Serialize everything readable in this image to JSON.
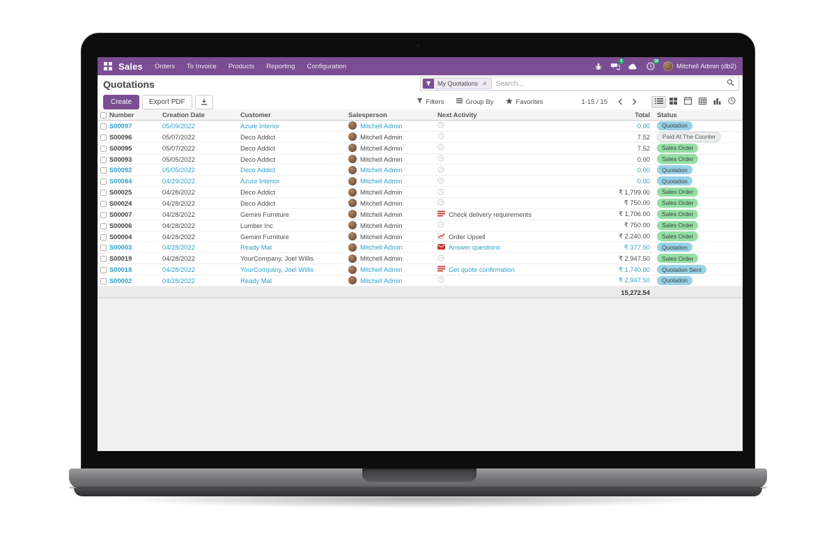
{
  "colors": {
    "purple": "#7B4D92",
    "link_blue": "#31A0C9",
    "activity_red": "#C7362F",
    "badge_info_bg": "#97D2E6",
    "badge_success_bg": "#93DFA4",
    "badge_muted_bg": "#EBEDEF",
    "navbar_badge": "#21A567"
  },
  "navbar": {
    "brand": "Sales",
    "menus": [
      "Orders",
      "To Invoice",
      "Products",
      "Reporting",
      "Configuration"
    ],
    "right_icons": [
      {
        "icon": "bug",
        "badge": ""
      },
      {
        "icon": "messages",
        "badge": "5"
      },
      {
        "icon": "cloud",
        "badge": ""
      },
      {
        "icon": "activities",
        "badge": "18"
      }
    ],
    "user": "Mitchell Admin (db2)"
  },
  "control_panel": {
    "title": "Quotations",
    "buttons": {
      "create": "Create",
      "export_pdf": "Export PDF"
    },
    "search": {
      "facet": "My Quotations",
      "placeholder": "Search..."
    },
    "filter_menus": [
      {
        "icon": "funnel",
        "label": "Filters"
      },
      {
        "icon": "bars",
        "label": "Group By"
      },
      {
        "icon": "star",
        "label": "Favorites"
      }
    ],
    "pager": {
      "range": "1-15 / 15"
    },
    "view_switcher": [
      "list",
      "kanban",
      "calendar",
      "pivot",
      "graph",
      "activity"
    ]
  },
  "table": {
    "headers": [
      "Number",
      "Creation Date",
      "Customer",
      "Salesperson",
      "Next Activity",
      "Total",
      "Status"
    ],
    "rows": [
      {
        "number": "S00097",
        "date": "05/09/2022",
        "customer": "Azure Interior",
        "salesperson": "Mitchell Admin",
        "activity": {
          "icon": "clock",
          "label": ""
        },
        "total": "0.00",
        "status": "Quotation",
        "variant": "info",
        "blue": true
      },
      {
        "number": "S00096",
        "date": "05/07/2022",
        "customer": "Deco Addict",
        "salesperson": "Mitchell Admin",
        "activity": {
          "icon": "clock",
          "label": ""
        },
        "total": "7.52",
        "status": "Paid At The Counter",
        "variant": "muted",
        "blue": false
      },
      {
        "number": "S00095",
        "date": "05/07/2022",
        "customer": "Deco Addict",
        "salesperson": "Mitchell Admin",
        "activity": {
          "icon": "clock",
          "label": ""
        },
        "total": "7.52",
        "status": "Sales Order",
        "variant": "success",
        "blue": false
      },
      {
        "number": "S00093",
        "date": "05/05/2022",
        "customer": "Deco Addict",
        "salesperson": "Mitchell Admin",
        "activity": {
          "icon": "clock",
          "label": ""
        },
        "total": "0.00",
        "status": "Sales Order",
        "variant": "success",
        "blue": false
      },
      {
        "number": "S00092",
        "date": "05/05/2022",
        "customer": "Deco Addict",
        "salesperson": "Mitchell Admin",
        "activity": {
          "icon": "clock",
          "label": ""
        },
        "total": "0.00",
        "status": "Quotation",
        "variant": "info",
        "blue": true
      },
      {
        "number": "S00084",
        "date": "04/29/2022",
        "customer": "Azure Interior",
        "salesperson": "Mitchell Admin",
        "activity": {
          "icon": "clock",
          "label": ""
        },
        "total": "0.00",
        "status": "Quotation",
        "variant": "info",
        "blue": true
      },
      {
        "number": "S00025",
        "date": "04/28/2022",
        "customer": "Deco Addict",
        "salesperson": "Mitchell Admin",
        "activity": {
          "icon": "clock",
          "label": ""
        },
        "total": "₹ 1,799.00",
        "status": "Sales Order",
        "variant": "success",
        "blue": false
      },
      {
        "number": "S00024",
        "date": "04/28/2022",
        "customer": "Deco Addict",
        "salesperson": "Mitchell Admin",
        "activity": {
          "icon": "clock",
          "label": ""
        },
        "total": "₹ 750.00",
        "status": "Sales Order",
        "variant": "success",
        "blue": false
      },
      {
        "number": "S00007",
        "date": "04/28/2022",
        "customer": "Gemini Furniture",
        "salesperson": "Mitchell Admin",
        "activity": {
          "icon": "tasks",
          "label": "Check delivery requirements"
        },
        "total": "₹ 1,706.00",
        "status": "Sales Order",
        "variant": "success",
        "blue": false
      },
      {
        "number": "S00006",
        "date": "04/28/2022",
        "customer": "Lumber Inc",
        "salesperson": "Mitchell Admin",
        "activity": {
          "icon": "clock",
          "label": ""
        },
        "total": "₹ 750.00",
        "status": "Sales Order",
        "variant": "success",
        "blue": false
      },
      {
        "number": "S00004",
        "date": "04/28/2022",
        "customer": "Gemini Furniture",
        "salesperson": "Mitchell Admin",
        "activity": {
          "icon": "chart",
          "label": "Order Upsell"
        },
        "total": "₹ 2,240.00",
        "status": "Sales Order",
        "variant": "success",
        "blue": false
      },
      {
        "number": "S00003",
        "date": "04/28/2022",
        "customer": "Ready Mat",
        "salesperson": "Mitchell Admin",
        "activity": {
          "icon": "mail",
          "label": "Answer questions"
        },
        "total": "₹ 377.50",
        "status": "Quotation",
        "variant": "info",
        "blue": true
      },
      {
        "number": "S00019",
        "date": "04/28/2022",
        "customer": "YourCompany, Joel Willis",
        "salesperson": "Mitchell Admin",
        "activity": {
          "icon": "clock",
          "label": ""
        },
        "total": "₹ 2,947.50",
        "status": "Sales Order",
        "variant": "success",
        "blue": false
      },
      {
        "number": "S00018",
        "date": "04/28/2022",
        "customer": "YourCompany, Joel Willis",
        "salesperson": "Mitchell Admin",
        "activity": {
          "icon": "tasks",
          "label": "Get quote confirmation"
        },
        "total": "₹ 1,740.00",
        "status": "Quotation Sent",
        "variant": "info",
        "blue": true
      },
      {
        "number": "S00002",
        "date": "04/28/2022",
        "customer": "Ready Mat",
        "salesperson": "Mitchell Admin",
        "activity": {
          "icon": "clock",
          "label": ""
        },
        "total": "₹ 2,947.50",
        "status": "Quotation",
        "variant": "info",
        "blue": true
      }
    ],
    "sum_total": "15,272.54"
  }
}
